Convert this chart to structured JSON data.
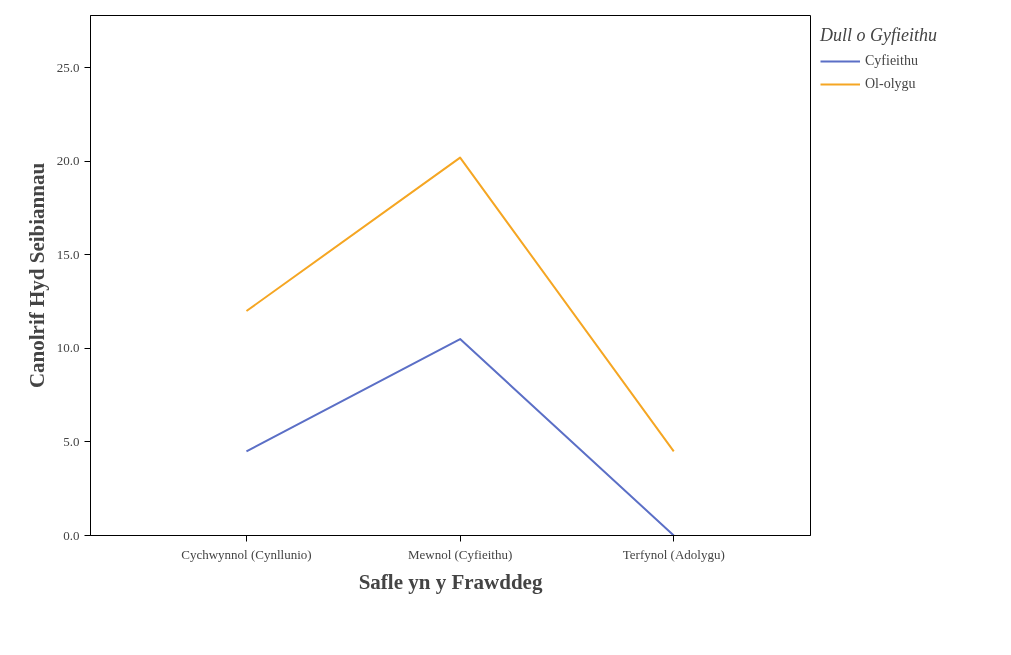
{
  "chart_data": {
    "type": "line",
    "xlabel": "Safle yn y Frawddeg",
    "ylabel": "Canolrif Hyd Seibiannau",
    "legend_title": "Dull o Gyfieithu",
    "categories": [
      "Cychwynnol (Cynllunio)",
      "Mewnol (Cyfieithu)",
      "Terfynol (Adolygu)"
    ],
    "series": [
      {
        "name": "Cyfieithu",
        "color": "#5b6fc6",
        "values": [
          4.5,
          10.5,
          0.0
        ]
      },
      {
        "name": "Ol-olygu",
        "color": "#f5a623",
        "values": [
          12.0,
          20.2,
          4.5
        ]
      }
    ],
    "ylim": [
      0,
      27.8
    ],
    "yticks": [
      {
        "value": 0,
        "label": "0.0"
      },
      {
        "value": 5,
        "label": "5.0"
      },
      {
        "value": 10,
        "label": "10.0"
      },
      {
        "value": 15,
        "label": "15.0"
      },
      {
        "value": 20,
        "label": "20.0"
      },
      {
        "value": 25,
        "label": "25.0"
      }
    ],
    "grid": false,
    "legend": "right",
    "marker": "none",
    "line_style": "solid"
  }
}
